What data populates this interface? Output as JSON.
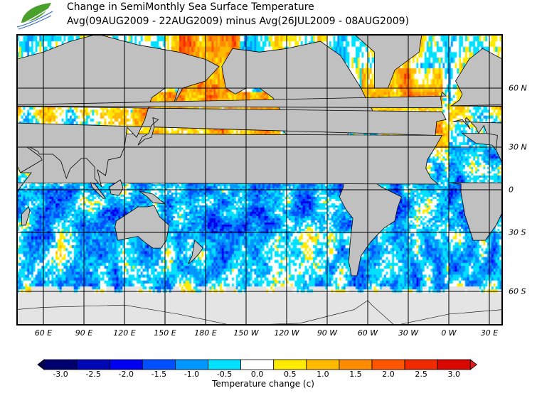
{
  "header": {
    "title": "Change in SemiMonthly Sea Surface Temperature",
    "subtitle": "Avg(09AUG2009 - 22AUG2009) minus Avg(26JUL2009 - 08AUG2009)"
  },
  "map": {
    "lon_labels": [
      "60 E",
      "90 E",
      "120 E",
      "150 E",
      "180 E",
      "150 W",
      "120 W",
      "90 W",
      "60 W",
      "30 W",
      "0 W",
      "30 E"
    ],
    "lat_labels": [
      "60 N",
      "30 N",
      "0",
      "30 S",
      "60 S"
    ],
    "colors": {
      "land": "#c0c0c0",
      "no_data": "#e4e4e4",
      "grid": "#000000"
    }
  },
  "colorbar": {
    "labels": [
      "-3.0",
      "-2.5",
      "-2.0",
      "-1.5",
      "-1.0",
      "-0.5",
      "0.0",
      "0.5",
      "1.0",
      "1.5",
      "2.0",
      "2.5",
      "3.0"
    ],
    "colors": [
      "#00006e",
      "#0008b4",
      "#0000f0",
      "#0050ff",
      "#0096ff",
      "#00e0ff",
      "#ffffff",
      "#ffea00",
      "#ffba00",
      "#ff8c00",
      "#ff5400",
      "#f02a00",
      "#d80800"
    ],
    "under_color": "#00005a",
    "over_color": "#e02020",
    "title": "Temperature change  (c)"
  }
}
